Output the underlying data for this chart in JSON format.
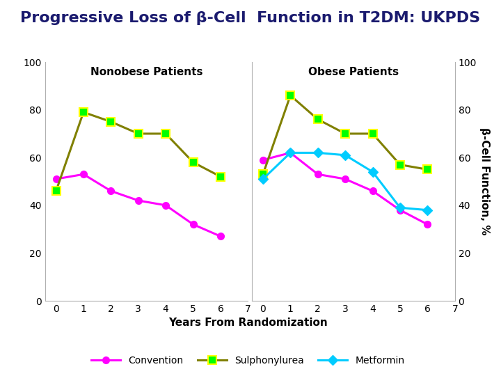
{
  "title": "Progressive Loss of β-Cell  Function in T2DM: UKPDS",
  "title_color": "#1a1a6e",
  "bar_color": "#8B3030",
  "xlabel": "Years From Randomization",
  "ylabel_right": "β-Cell Function, %",
  "years": [
    0,
    1,
    2,
    3,
    4,
    5,
    6
  ],
  "nonobese_convention": [
    51,
    53,
    46,
    42,
    40,
    32,
    27
  ],
  "nonobese_sulphonylurea": [
    46,
    79,
    75,
    70,
    70,
    58,
    52
  ],
  "obese_convention": [
    59,
    62,
    53,
    51,
    46,
    38,
    32
  ],
  "obese_sulphonylurea": [
    53,
    86,
    76,
    70,
    70,
    57,
    55
  ],
  "obese_metformin": [
    51,
    62,
    62,
    61,
    54,
    39,
    38
  ],
  "convention_color": "#FF00FF",
  "sulphonylurea_line_color": "#808000",
  "sulphonylurea_marker_color": "#00FF00",
  "metformin_color": "#00CCFF",
  "nonobese_label": "Nonobese Patients",
  "obese_label": "Obese Patients",
  "ylim": [
    0,
    100
  ],
  "yticks": [
    0,
    20,
    40,
    60,
    80,
    100
  ],
  "xticks": [
    0,
    1,
    2,
    3,
    4,
    5,
    6,
    7
  ],
  "background_color": "#FFFFFF",
  "title_fontsize": 16,
  "label_fontsize": 10,
  "tick_fontsize": 10,
  "legend_fontsize": 10
}
